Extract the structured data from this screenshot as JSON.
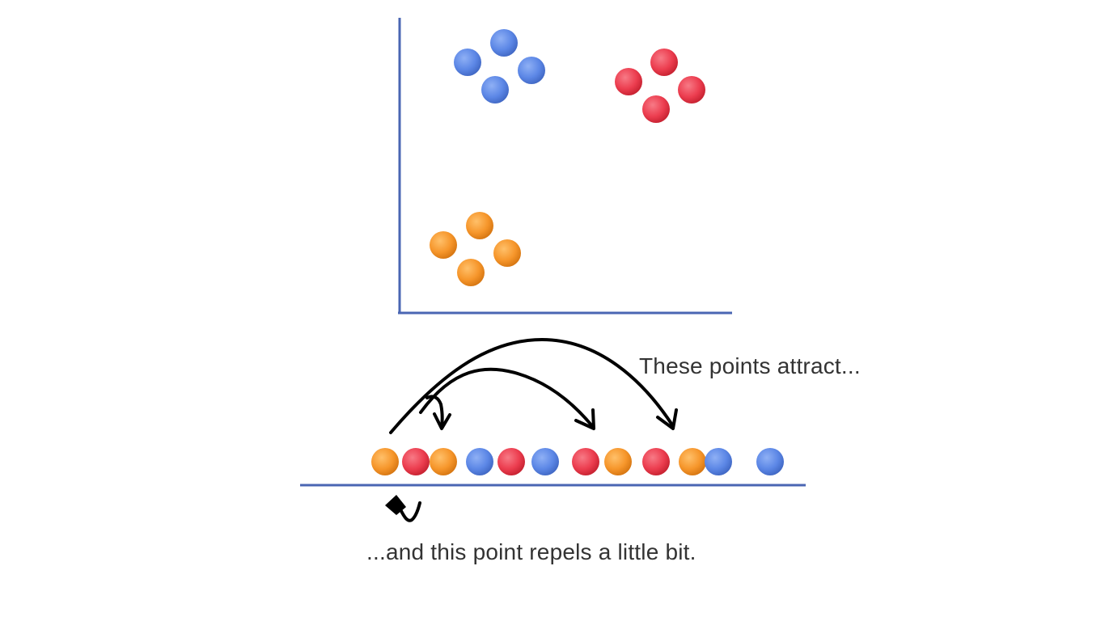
{
  "colors": {
    "blue": "#5c87e6",
    "red": "#ec3d4f",
    "orange": "#f6962b",
    "axis": "#4a66b3",
    "arrow": "#000000"
  },
  "captions": {
    "attract": "These points attract...",
    "repel": "...and this point repels a little bit."
  },
  "clusters": [
    {
      "name": "blue-cluster",
      "color": "blue",
      "count": 4
    },
    {
      "name": "red-cluster",
      "color": "red",
      "count": 4
    },
    {
      "name": "orange-cluster",
      "color": "orange",
      "count": 4
    }
  ],
  "number_line_sequence": [
    "orange",
    "red",
    "orange",
    "blue",
    "red",
    "blue",
    "red",
    "orange",
    "red",
    "orange",
    "blue",
    "blue"
  ],
  "arrows": {
    "attract_targets": 3,
    "repel_mark": "curved-arrow-down"
  }
}
